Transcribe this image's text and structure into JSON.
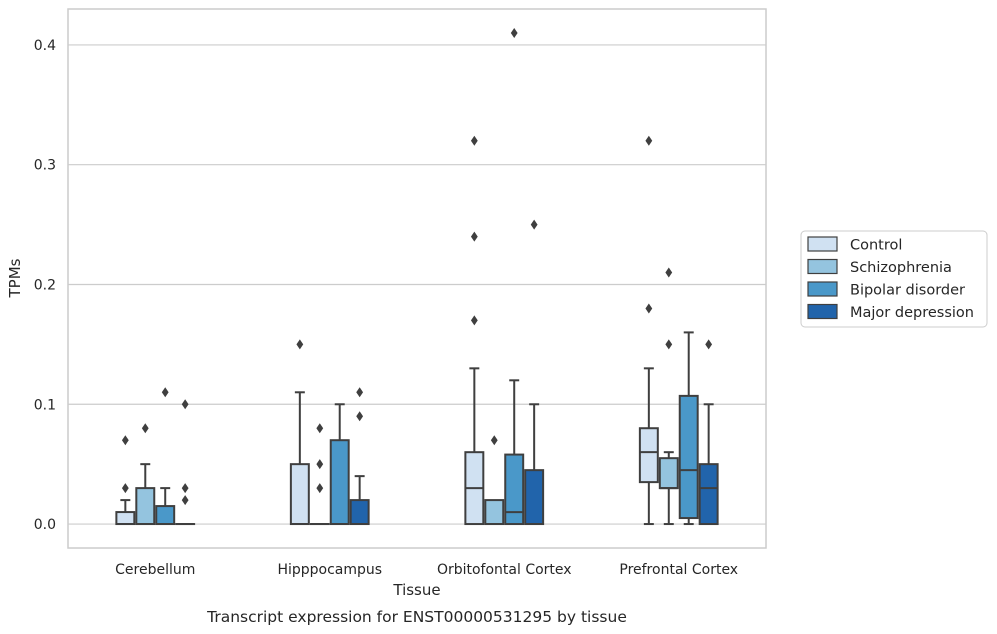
{
  "chart_data": {
    "type": "box",
    "xlabel": "Tissue",
    "ylabel": "TPMs",
    "caption": "Transcript expression for ENST00000531295 by tissue",
    "categories": [
      "Cerebellum",
      "Hipppocampus",
      "Orbitofontal Cortex",
      "Prefrontal Cortex"
    ],
    "ylim": [
      -0.02,
      0.43
    ],
    "yticks": [
      "0.0",
      "0.1",
      "0.2",
      "0.3",
      "0.4"
    ],
    "grid": true,
    "legend_position": "right",
    "series": [
      {
        "name": "Control",
        "color": "#d0e1f2",
        "boxes": [
          {
            "q1": 0.0,
            "median": 0.0,
            "q3": 0.01,
            "whisker_low": 0.0,
            "whisker_high": 0.02,
            "outliers": [
              0.03,
              0.07
            ]
          },
          {
            "q1": 0.0,
            "median": 0.0,
            "q3": 0.05,
            "whisker_low": 0.0,
            "whisker_high": 0.11,
            "outliers": [
              0.15
            ]
          },
          {
            "q1": 0.0,
            "median": 0.03,
            "q3": 0.06,
            "whisker_low": 0.0,
            "whisker_high": 0.13,
            "outliers": [
              0.17,
              0.24,
              0.32
            ]
          },
          {
            "q1": 0.035,
            "median": 0.06,
            "q3": 0.08,
            "whisker_low": 0.0,
            "whisker_high": 0.13,
            "outliers": [
              0.18,
              0.32
            ]
          }
        ]
      },
      {
        "name": "Schizophrenia",
        "color": "#94c4df",
        "boxes": [
          {
            "q1": 0.0,
            "median": 0.0,
            "q3": 0.03,
            "whisker_low": 0.0,
            "whisker_high": 0.05,
            "outliers": [
              0.08
            ]
          },
          {
            "q1": 0.0,
            "median": 0.0,
            "q3": 0.0,
            "whisker_low": 0.0,
            "whisker_high": 0.0,
            "outliers": [
              0.03,
              0.05,
              0.08
            ]
          },
          {
            "q1": 0.0,
            "median": 0.0,
            "q3": 0.02,
            "whisker_low": 0.0,
            "whisker_high": 0.02,
            "outliers": [
              0.07
            ]
          },
          {
            "q1": 0.03,
            "median": 0.03,
            "q3": 0.055,
            "whisker_low": 0.0,
            "whisker_high": 0.06,
            "outliers": [
              0.15,
              0.21
            ]
          }
        ]
      },
      {
        "name": "Bipolar disorder",
        "color": "#4a98c9",
        "boxes": [
          {
            "q1": 0.0,
            "median": 0.0,
            "q3": 0.015,
            "whisker_low": 0.0,
            "whisker_high": 0.03,
            "outliers": [
              0.11
            ]
          },
          {
            "q1": 0.0,
            "median": 0.0,
            "q3": 0.07,
            "whisker_low": 0.0,
            "whisker_high": 0.1,
            "outliers": []
          },
          {
            "q1": 0.0,
            "median": 0.01,
            "q3": 0.058,
            "whisker_low": 0.0,
            "whisker_high": 0.12,
            "outliers": [
              0.41
            ]
          },
          {
            "q1": 0.005,
            "median": 0.045,
            "q3": 0.107,
            "whisker_low": 0.0,
            "whisker_high": 0.16,
            "outliers": []
          }
        ]
      },
      {
        "name": "Major depression",
        "color": "#2164ab",
        "boxes": [
          {
            "q1": 0.0,
            "median": 0.0,
            "q3": 0.0,
            "whisker_low": 0.0,
            "whisker_high": 0.0,
            "outliers": [
              0.02,
              0.03,
              0.1
            ]
          },
          {
            "q1": 0.0,
            "median": 0.0,
            "q3": 0.02,
            "whisker_low": 0.0,
            "whisker_high": 0.04,
            "outliers": [
              0.09,
              0.11
            ]
          },
          {
            "q1": 0.0,
            "median": 0.0,
            "q3": 0.045,
            "whisker_low": 0.0,
            "whisker_high": 0.1,
            "outliers": [
              0.25
            ]
          },
          {
            "q1": 0.0,
            "median": 0.03,
            "q3": 0.05,
            "whisker_low": 0.0,
            "whisker_high": 0.1,
            "outliers": [
              0.15
            ]
          }
        ]
      }
    ]
  }
}
